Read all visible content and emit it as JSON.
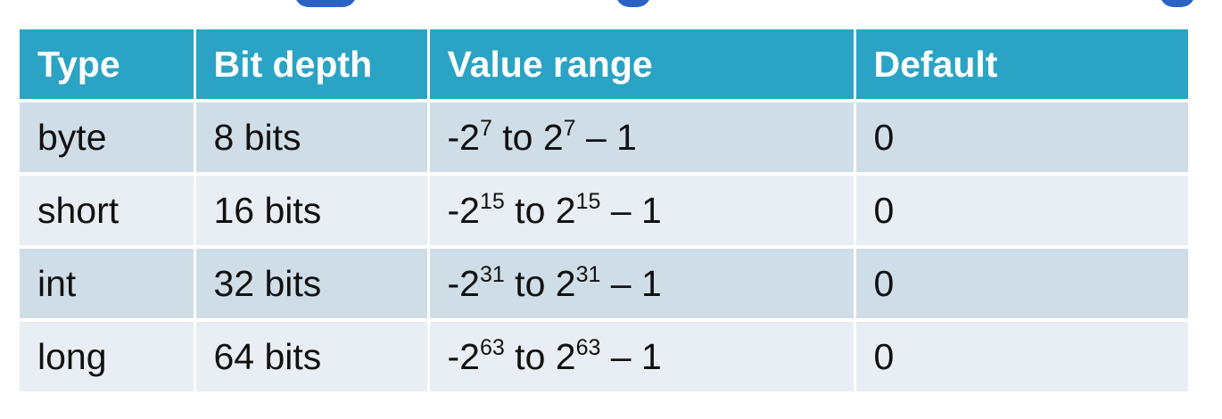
{
  "table": {
    "headers": [
      "Type",
      "Bit depth",
      "Value range",
      "Default"
    ],
    "rows": [
      {
        "type": "byte",
        "bits": "8 bits",
        "range": {
          "neg_prefix": "-2",
          "exp1": "7",
          "mid": " to 2",
          "exp2": "7",
          "suffix": " – 1"
        },
        "default": "0"
      },
      {
        "type": "short",
        "bits": "16 bits",
        "range": {
          "neg_prefix": "-2",
          "exp1": "15",
          "mid": " to 2",
          "exp2": "15",
          "suffix": " – 1"
        },
        "default": "0"
      },
      {
        "type": "int",
        "bits": "32 bits",
        "range": {
          "neg_prefix": "-2",
          "exp1": "31",
          "mid": " to 2",
          "exp2": "31",
          "suffix": " – 1"
        },
        "default": "0"
      },
      {
        "type": "long",
        "bits": "64 bits",
        "range": {
          "neg_prefix": "-2",
          "exp1": "63",
          "mid": " to 2",
          "exp2": "63",
          "suffix": " – 1"
        },
        "default": "0"
      }
    ]
  },
  "colors": {
    "header_bg": "#2aa3c4",
    "row_dark": "#cfdde6",
    "row_light": "#e8eef3",
    "title_fragment": "#2b63c4"
  }
}
